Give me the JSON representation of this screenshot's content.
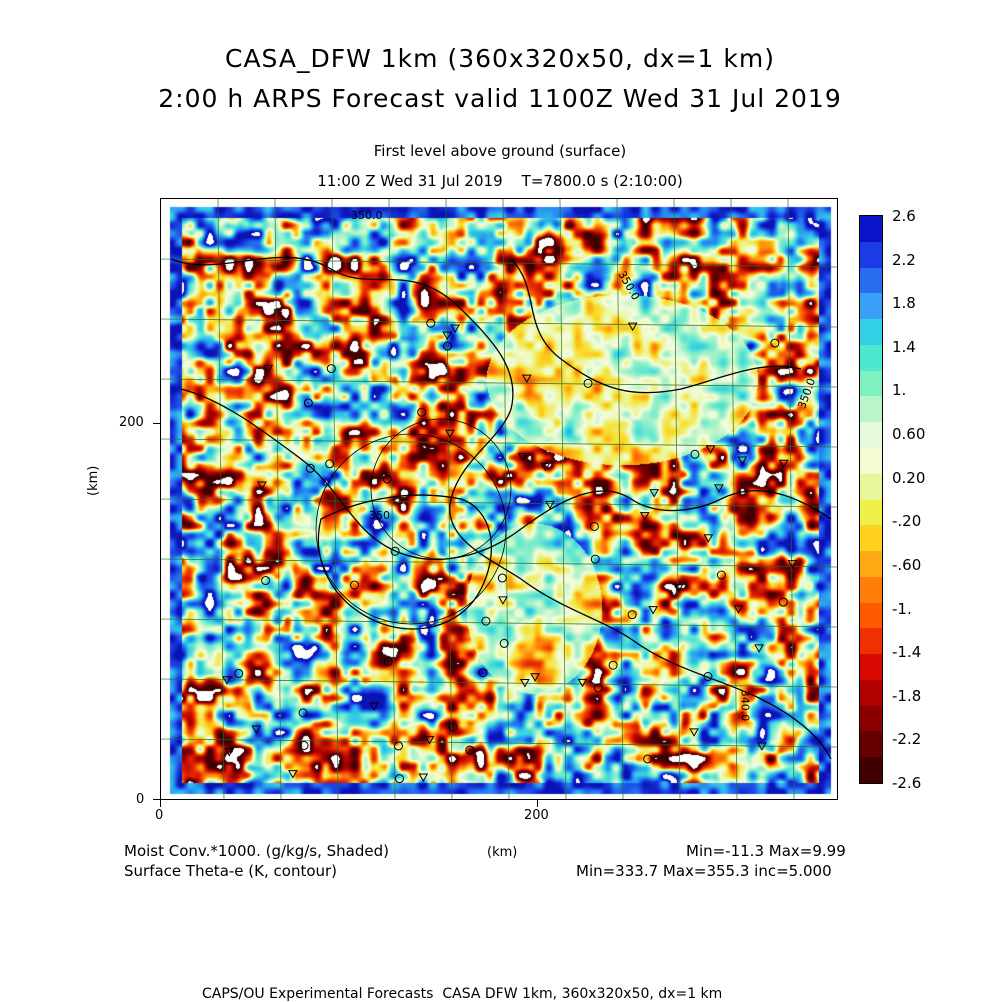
{
  "title_line1": "CASA_DFW 1km (360x320x50, dx=1 km)",
  "title_line2": "2:00 h ARPS Forecast valid 1100Z Wed 31 Jul 2019",
  "subtitle1": "First level above ground (surface)",
  "subtitle2": "11:00 Z Wed 31 Jul 2019    T=7800.0 s (2:10:00)",
  "axes": {
    "y_label": "(km)",
    "x_label": "(km)",
    "y_ticks": [
      "0",
      "200"
    ],
    "x_ticks": [
      "0",
      "200"
    ]
  },
  "contour_labels": [
    "350.0",
    "350.0",
    "350.0",
    "350",
    "340.0"
  ],
  "colorbar": {
    "labels": [
      "2.6",
      "2.2",
      "1.8",
      "1.4",
      "1.",
      "0.60",
      "0.20",
      "-.20",
      "-.60",
      "-1.",
      "-1.4",
      "-1.8",
      "-2.2",
      "-2.6"
    ],
    "colors": [
      "#0a14c8",
      "#1a3ce6",
      "#2a6cf0",
      "#3aa0f5",
      "#34d0e6",
      "#4de8d0",
      "#7ff0c0",
      "#b8f5c8",
      "#e6fadc",
      "#f5fad0",
      "#e8f59a",
      "#f0f04a",
      "#ffd21e",
      "#ffaa14",
      "#ff7d0a",
      "#ff5a00",
      "#f03000",
      "#d80a00",
      "#b00000",
      "#8a0000",
      "#660000",
      "#400000"
    ]
  },
  "footer": {
    "left_line1": "Moist Conv.*1000. (g/kg/s, Shaded)",
    "left_line2": "Surface Theta-e (K, contour)",
    "center_unit": "(km)",
    "right_line1": "Min=-11.3 Max=9.99",
    "right_line2": "Min=333.7 Max=355.3 inc=5.000"
  },
  "credit": "CAPS/OU Experimental Forecasts  CASA DFW 1km, 360x320x50, dx=1 km"
}
